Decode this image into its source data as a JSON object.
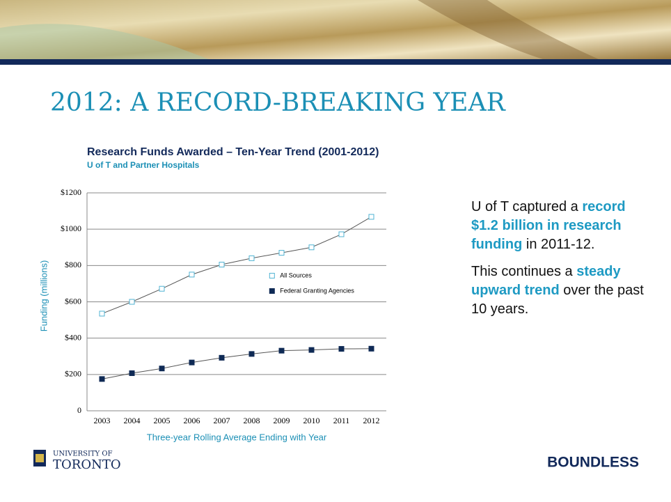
{
  "slide": {
    "title": "2012: A RECORD-BREAKING YEAR",
    "body": [
      [
        {
          "text": "U of T captured a ",
          "emphasis": false
        },
        {
          "text": "record $1.2 billion in research funding",
          "emphasis": true
        },
        {
          "text": " in 2011-12.",
          "emphasis": false
        }
      ],
      [
        {
          "text": "This continues a ",
          "emphasis": false
        },
        {
          "text": "steady upward trend",
          "emphasis": true
        },
        {
          "text": " over the past 10 years.",
          "emphasis": false
        }
      ]
    ],
    "logo": {
      "line1": "UNIVERSITY OF",
      "line2": "TORONTO"
    },
    "brand": "BOUNDLESS"
  },
  "chart_data": {
    "type": "line",
    "title": "Research Funds Awarded – Ten-Year Trend (2001-2012)",
    "subtitle": "U of T and Partner Hospitals",
    "x_label": "Three-year Rolling Average Ending with Year",
    "y_label": "Funding (millions)",
    "categories": [
      "2003",
      "2004",
      "2005",
      "2006",
      "2007",
      "2008",
      "2009",
      "2010",
      "2011",
      "2012"
    ],
    "series": [
      {
        "name": "All Sources",
        "color": "#4fb3d3",
        "marker": "open-square",
        "values": [
          535,
          600,
          672,
          750,
          805,
          840,
          870,
          900,
          972,
          1068
        ]
      },
      {
        "name": "Federal Granting Agencies",
        "color": "#0f2a55",
        "marker": "filled-square",
        "values": [
          175,
          207,
          233,
          266,
          292,
          313,
          331,
          335,
          341,
          342
        ]
      }
    ],
    "line_color": "#555555",
    "ylim": [
      0,
      1200
    ],
    "yticks": [
      0,
      {
        "value": 200,
        "label": "$200"
      },
      {
        "value": 400,
        "label": "$400"
      },
      {
        "value": 600,
        "label": "$600"
      },
      {
        "value": 800,
        "label": "$800"
      },
      {
        "value": 1000,
        "label": "$1000"
      },
      {
        "value": 1200,
        "label": "$1200"
      }
    ],
    "grid": true,
    "legend": "center"
  }
}
